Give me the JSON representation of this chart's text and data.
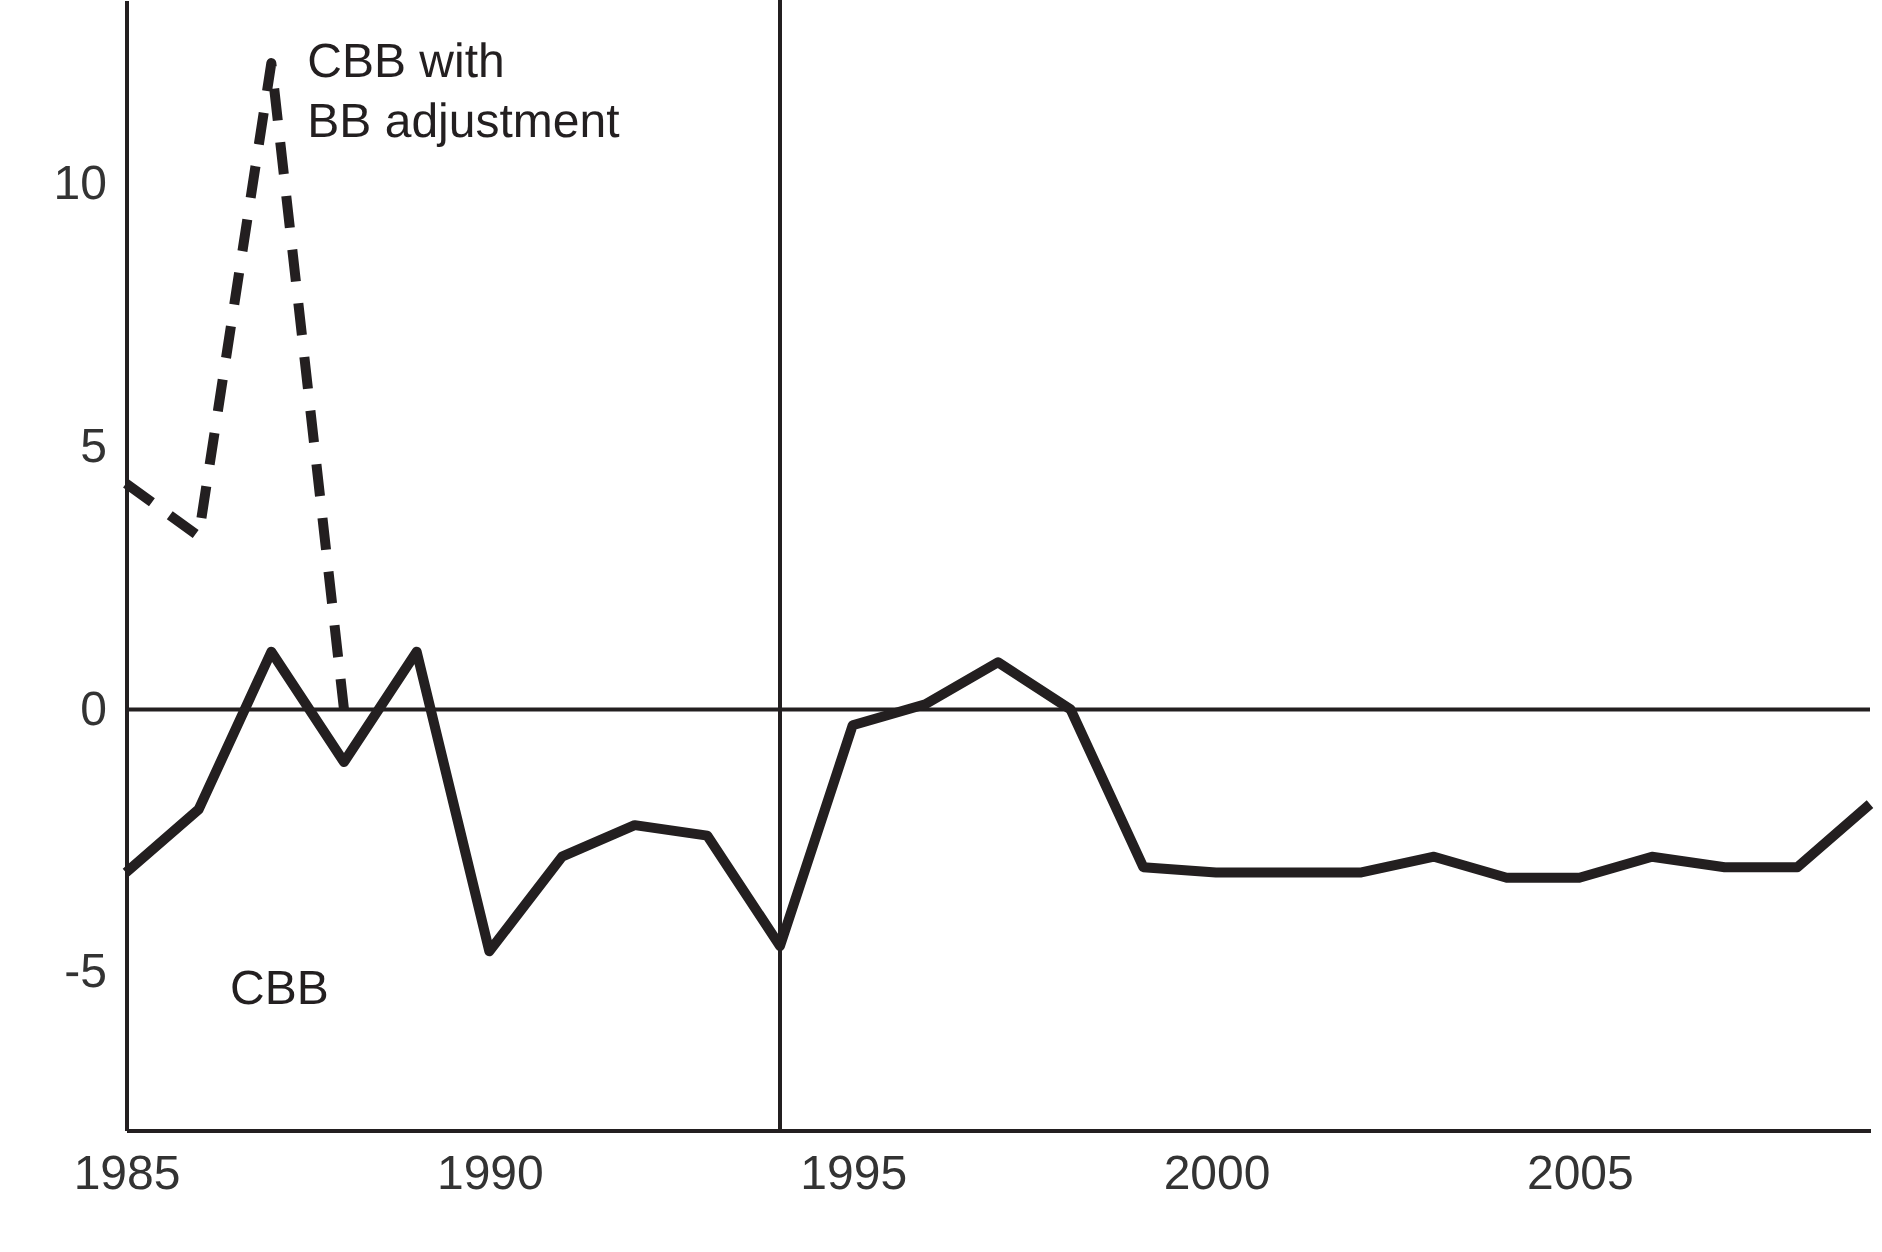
{
  "chart_data": {
    "type": "line",
    "x": [
      1985,
      1986,
      1987,
      1988,
      1989,
      1990,
      1991,
      1992,
      1993,
      1994,
      1995,
      1996,
      1997,
      1998,
      1999,
      2000,
      2001,
      2002,
      2003,
      2004,
      2005,
      2006,
      2007,
      2008,
      2009
    ],
    "series": [
      {
        "name": "CBB",
        "color": "#231f20",
        "line_style": "solid",
        "values": [
          -3.1,
          -1.9,
          1.1,
          -1.0,
          1.1,
          -4.6,
          -2.8,
          -2.2,
          -2.4,
          -4.5,
          -0.3,
          0.1,
          0.9,
          0,
          -3.0,
          -3.1,
          -3.1,
          -3.1,
          -2.8,
          -3.2,
          -3.2,
          -2.8,
          -3.0,
          -3.0,
          -1.8
        ]
      },
      {
        "name": "CBB with BB adjustment",
        "color": "#231f20",
        "line_style": "dashed",
        "x": [
          1985,
          1986,
          1987,
          1988
        ],
        "values": [
          4.3,
          3.3,
          12.3,
          0
        ]
      }
    ],
    "xlim": [
      1985,
      2009
    ],
    "ylim": [
      -8,
      13.5
    ],
    "xticks": [
      1985,
      1990,
      1995,
      2000,
      2005
    ],
    "yticks": [
      -5,
      0,
      5,
      10
    ],
    "grid": false,
    "legend": false,
    "ref_lines": [
      {
        "axis": "x",
        "value": 1994
      },
      {
        "axis": "y",
        "value": 0
      }
    ]
  }
}
